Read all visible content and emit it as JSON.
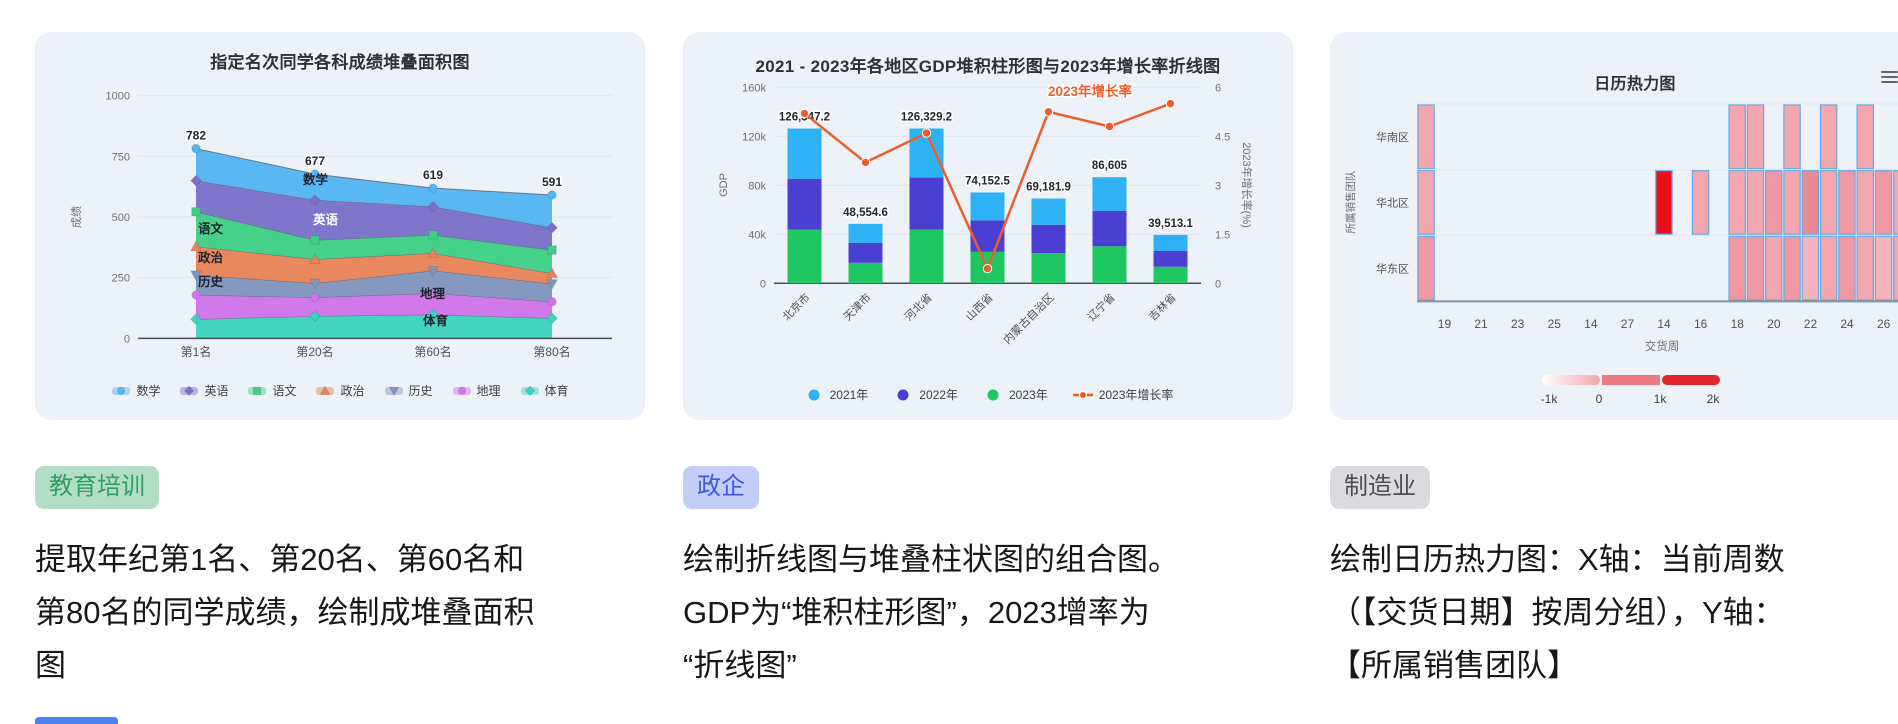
{
  "cards": [
    {
      "tag": {
        "label": "教育培训",
        "bg": "#b3ddc6",
        "text_color": "#2f9e68"
      },
      "description_lines": [
        "提取年纪第1名、第20名、第60名和",
        "第80名的同学成绩，绘制成堆叠面积",
        "图"
      ]
    },
    {
      "tag": {
        "label": "政企",
        "bg": "#c2cdf8",
        "text_color": "#4356d8"
      },
      "description_lines": [
        "绘制折线图与堆叠柱状图的组合图。",
        "GDP为“堆积柱形图”，2023增率为",
        "“折线图”"
      ]
    },
    {
      "tag": {
        "label": "制造业",
        "bg": "#dadbdf",
        "text_color": "#4e4f52"
      },
      "description_lines": [
        "绘制日历热力图：X轴：当前周数",
        "（【交货日期】按周分组），Y轴：",
        "【所属销售团队】"
      ]
    }
  ],
  "chart_data": [
    {
      "type": "area",
      "title": "指定名次同学各科成绩堆叠面积图",
      "ylabel": "成绩",
      "xlabel": "",
      "ylim": [
        0,
        1000
      ],
      "yticks": [
        0,
        250,
        500,
        750,
        1000
      ],
      "categories": [
        "第1名",
        "第20名",
        "第60名",
        "第80名"
      ],
      "totals": [
        782,
        677,
        619,
        591
      ],
      "stack_order": "bottom to top: 体育, 地理, 历史, 政治, 语文, 英语, 数学",
      "series": [
        {
          "name": "数学",
          "color": "#52b5f1",
          "marker": "circle",
          "values": [
            132,
            107,
            76,
            135
          ]
        },
        {
          "name": "英语",
          "color": "#7a6fc9",
          "marker": "diamond",
          "values": [
            128,
            165,
            117,
            92
          ]
        },
        {
          "name": "语文",
          "color": "#3ecf86",
          "marker": "square",
          "values": [
            144,
            79,
            75,
            96
          ]
        },
        {
          "name": "政治",
          "color": "#e88257",
          "marker": "triangle-up",
          "values": [
            117,
            99,
            72,
            43
          ]
        },
        {
          "name": "历史",
          "color": "#8095bd",
          "marker": "triangle-down",
          "values": [
            82,
            58,
            93,
            74
          ]
        },
        {
          "name": "地理",
          "color": "#cf74ea",
          "marker": "circle",
          "values": [
            100,
            77,
            88,
            68
          ]
        },
        {
          "name": "体育",
          "color": "#3bd3bd",
          "marker": "diamond",
          "values": [
            79,
            92,
            98,
            83
          ]
        }
      ],
      "legend": [
        "数学",
        "英语",
        "语文",
        "政治",
        "历史",
        "地理",
        "体育"
      ]
    },
    {
      "type": "bar+line",
      "title": "2021 - 2023年各地区GDP堆积柱形图与2023年增长率折线图",
      "categories": [
        "北京市",
        "天津市",
        "河北省",
        "山西省",
        "内蒙古自治区",
        "辽宁省",
        "吉林省"
      ],
      "left_axis": {
        "name": "GDP",
        "lim": [
          0,
          160000
        ],
        "ticks": [
          "0",
          "40k",
          "80k",
          "120k",
          "160k"
        ]
      },
      "right_axis": {
        "name": "2023年增长率(%)",
        "lim": [
          0,
          6
        ],
        "ticks": [
          "0",
          "1.5",
          "3",
          "4.5",
          "6"
        ]
      },
      "bar_series": [
        {
          "name": "2023年",
          "color": "#1ec761",
          "values": [
            43760.7,
            16737.3,
            43944.1,
            25698.2,
            24627.0,
            30209.4,
            13531.2
          ]
        },
        {
          "name": "2022年",
          "color": "#4a3fd0",
          "values": [
            41610.9,
            16311.3,
            42370.4,
            25642.6,
            23158.6,
            28975.1,
            13070.2
          ]
        },
        {
          "name": "2021年",
          "color": "#2eb2f5",
          "values": [
            40975.6,
            15506.0,
            40014.7,
            22811.7,
            21396.3,
            27420.5,
            12911.7
          ]
        }
      ],
      "totals_display": [
        "126,347.2",
        "48,554.6",
        "126,329.2",
        "74,152.5",
        "69,181.9",
        "86,605",
        "39,513.1"
      ],
      "line_series": {
        "name": "2023年增长率",
        "color": "#ed5d2b",
        "values": [
          5.2,
          3.7,
          4.6,
          0.45,
          5.25,
          4.8,
          5.5
        ]
      },
      "line_label": "2023年增长率",
      "legend": [
        "2021年",
        "2022年",
        "2023年",
        "2023年增长率"
      ]
    },
    {
      "type": "heatmap",
      "title": "日历热力图",
      "xlabel": "交货周",
      "ylabel": "所属销售团队",
      "rows": [
        "华南区",
        "华北区",
        "华东区"
      ],
      "x_tick_labels": [
        "19",
        "21",
        "23",
        "25",
        "14",
        "27",
        "14",
        "16",
        "18",
        "20",
        "22",
        "24",
        "26"
      ],
      "x_tick_cols": [
        1,
        3,
        5,
        7,
        9,
        11,
        13,
        15,
        17,
        19,
        21,
        23,
        25
      ],
      "n_cols": 28,
      "palette": {
        "lighter": "#f5b4bc",
        "light": "#f2a6ae",
        "medium": "#ef98a1",
        "dark": "#ec8a94",
        "red": "#e8101b"
      },
      "cells": [
        [
          0,
          0,
          "light"
        ],
        [
          0,
          17,
          "light"
        ],
        [
          0,
          18,
          "light"
        ],
        [
          0,
          20,
          "light"
        ],
        [
          0,
          22,
          "light"
        ],
        [
          0,
          24,
          "light"
        ],
        [
          1,
          0,
          "light"
        ],
        [
          1,
          13,
          "red"
        ],
        [
          1,
          15,
          "light"
        ],
        [
          1,
          17,
          "light"
        ],
        [
          1,
          18,
          "light"
        ],
        [
          1,
          19,
          "medium"
        ],
        [
          1,
          20,
          "light"
        ],
        [
          1,
          21,
          "dark"
        ],
        [
          1,
          22,
          "light"
        ],
        [
          1,
          23,
          "medium"
        ],
        [
          1,
          24,
          "light"
        ],
        [
          1,
          25,
          "medium"
        ],
        [
          1,
          26,
          "light"
        ],
        [
          1,
          27,
          "light"
        ],
        [
          2,
          0,
          "medium"
        ],
        [
          2,
          17,
          "medium"
        ],
        [
          2,
          18,
          "medium"
        ],
        [
          2,
          19,
          "light"
        ],
        [
          2,
          20,
          "medium"
        ],
        [
          2,
          21,
          "lighter"
        ],
        [
          2,
          22,
          "light"
        ],
        [
          2,
          23,
          "medium"
        ],
        [
          2,
          24,
          "light"
        ],
        [
          2,
          25,
          "lighter"
        ],
        [
          2,
          26,
          "light"
        ]
      ],
      "visual_map": {
        "labels": [
          "-1k",
          "0",
          "1k",
          "2k"
        ],
        "colors": [
          "#ffffff",
          "#f2a6ad",
          "#ee7a83",
          "#e6242c"
        ]
      }
    }
  ]
}
